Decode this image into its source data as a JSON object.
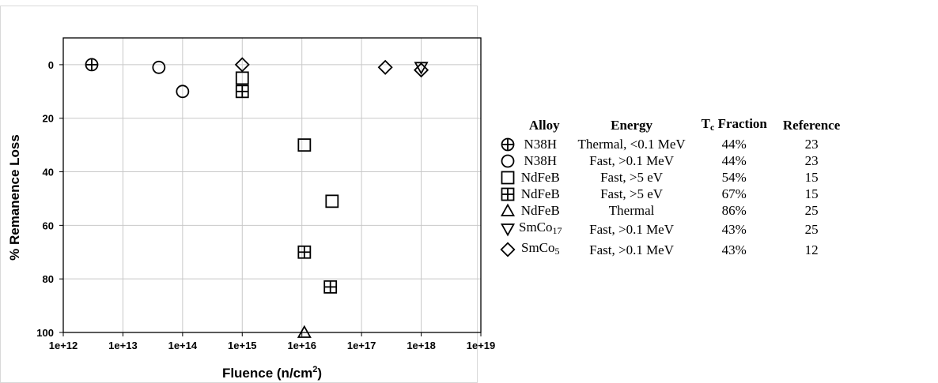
{
  "chart_data": {
    "type": "scatter",
    "xlabel": "Fluence (n/cm",
    "xlabel_sup": "2",
    "xlabel_close": ")",
    "ylabel": "% Remanence Loss",
    "x_scale": "log",
    "xlim": [
      1000000000000.0,
      1e+19
    ],
    "ylim": [
      100,
      -10
    ],
    "y_inverted": true,
    "grid": true,
    "x_ticks": [
      1000000000000.0,
      10000000000000.0,
      100000000000000.0,
      1000000000000000.0,
      1e+16,
      1e+17,
      1e+18,
      1e+19
    ],
    "x_tick_labels": [
      "1e+12",
      "1e+13",
      "1e+14",
      "1e+15",
      "1e+16",
      "1e+17",
      "1e+18",
      "1e+19"
    ],
    "y_ticks": [
      0,
      20,
      40,
      60,
      80,
      100
    ],
    "y_tick_labels": [
      "0",
      "20",
      "40",
      "60",
      "80",
      "100"
    ],
    "series": [
      {
        "marker": "circle-plus",
        "points": [
          {
            "x": 3000000000000.0,
            "y": 0
          }
        ]
      },
      {
        "marker": "circle",
        "points": [
          {
            "x": 40000000000000.0,
            "y": 1
          },
          {
            "x": 100000000000000.0,
            "y": 10
          }
        ]
      },
      {
        "marker": "square",
        "points": [
          {
            "x": 1000000000000000.0,
            "y": 5
          },
          {
            "x": 1.1e+16,
            "y": 30
          },
          {
            "x": 3.2e+16,
            "y": 51
          }
        ]
      },
      {
        "marker": "square-plus",
        "points": [
          {
            "x": 1000000000000000.0,
            "y": 10
          },
          {
            "x": 1.1e+16,
            "y": 70
          },
          {
            "x": 3e+16,
            "y": 83
          }
        ]
      },
      {
        "marker": "triangle-up",
        "points": [
          {
            "x": 1.1e+16,
            "y": 100
          }
        ]
      },
      {
        "marker": "triangle-down",
        "points": [
          {
            "x": 1e+18,
            "y": 1
          }
        ]
      },
      {
        "marker": "diamond",
        "points": [
          {
            "x": 1000000000000000.0,
            "y": 0
          },
          {
            "x": 2.5e+17,
            "y": 1
          },
          {
            "x": 1e+18,
            "y": 2
          }
        ]
      }
    ]
  },
  "legend": {
    "headers": {
      "alloy": "Alloy",
      "energy": "Energy",
      "tc_main": "T",
      "tc_sub": "c",
      "tc_rest": " Fraction",
      "reference": "Reference"
    },
    "rows": [
      {
        "marker": "circle-plus",
        "alloy": "N38H",
        "alloy_sub": "",
        "energy": "Thermal, <0.1 MeV",
        "tc_fraction": "44%",
        "reference": "23"
      },
      {
        "marker": "circle",
        "alloy": "N38H",
        "alloy_sub": "",
        "energy": "Fast, >0.1 MeV",
        "tc_fraction": "44%",
        "reference": "23"
      },
      {
        "marker": "square",
        "alloy": "NdFeB",
        "alloy_sub": "",
        "energy": "Fast, >5 eV",
        "tc_fraction": "54%",
        "reference": "15"
      },
      {
        "marker": "square-plus",
        "alloy": "NdFeB",
        "alloy_sub": "",
        "energy": "Fast, >5 eV",
        "tc_fraction": "67%",
        "reference": "15"
      },
      {
        "marker": "triangle-up",
        "alloy": "NdFeB",
        "alloy_sub": "",
        "energy": "Thermal",
        "tc_fraction": "86%",
        "reference": "25"
      },
      {
        "marker": "triangle-down",
        "alloy": "SmCo",
        "alloy_sub": "17",
        "energy": "Fast, >0.1 MeV",
        "tc_fraction": "43%",
        "reference": "25"
      },
      {
        "marker": "diamond",
        "alloy": "SmCo",
        "alloy_sub": "5",
        "energy": "Fast, >0.1 MeV",
        "tc_fraction": "43%",
        "reference": "12"
      }
    ]
  }
}
